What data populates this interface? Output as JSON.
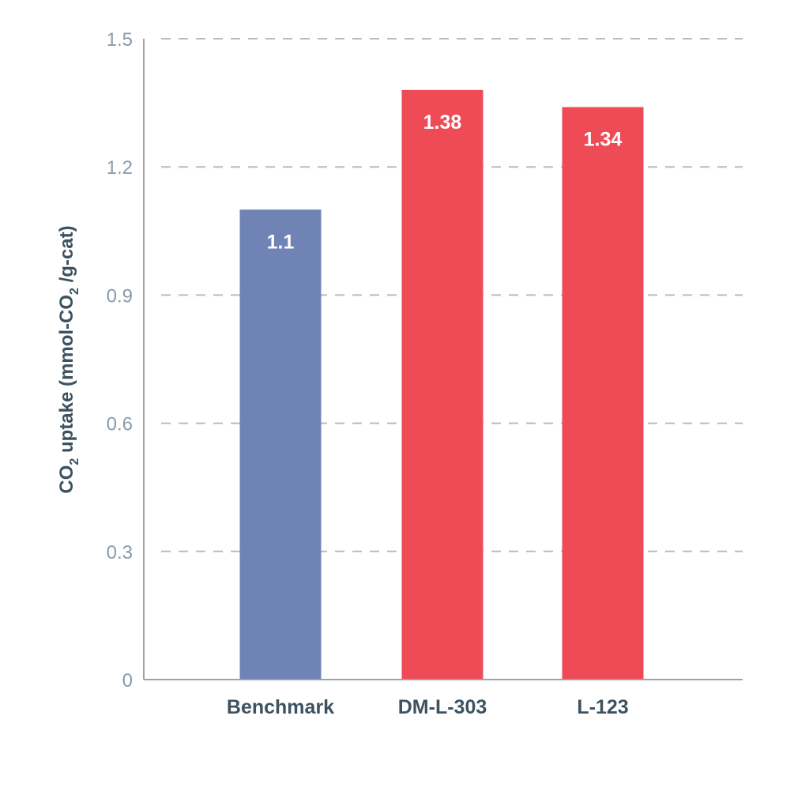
{
  "chart_data": {
    "type": "bar",
    "categories": [
      "Benchmark",
      "DM-L-303",
      "L-123"
    ],
    "values": [
      1.1,
      1.38,
      1.34
    ],
    "value_labels": [
      "1.1",
      "1.38",
      "1.34"
    ],
    "bar_colors": [
      "#6f83b5",
      "#ee4b57",
      "#ee4b57"
    ],
    "ylabel": "CO2 uptake (mmol-CO2 /g-cat)",
    "ylim": [
      0,
      1.5
    ],
    "yticks": [
      0,
      0.3,
      0.6,
      0.9,
      1.2,
      1.5
    ],
    "ytick_labels": [
      "0",
      "0.3",
      "0.6",
      "0.9",
      "1.2",
      "1.5"
    ],
    "grid": true,
    "legend": "none"
  }
}
